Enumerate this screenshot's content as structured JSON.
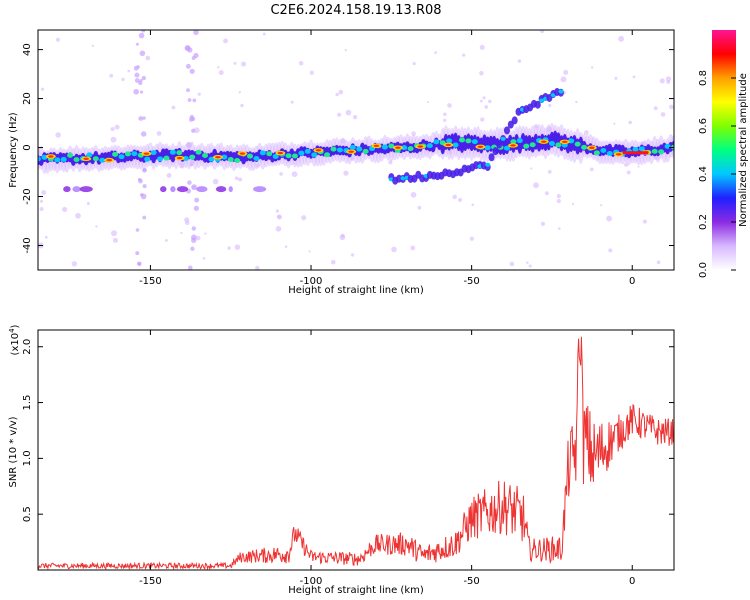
{
  "title": "C2E6.2024.158.19.13.R08",
  "chart_data": [
    {
      "type": "heatmap",
      "xlabel": "Height of straight line (km)",
      "ylabel": "Frequency (Hz)",
      "xlim": [
        -185,
        13
      ],
      "ylim": [
        -50,
        48
      ],
      "xticks": [
        -150,
        -100,
        -50,
        0
      ],
      "yticks": [
        40,
        20,
        0,
        -20,
        -40
      ],
      "colorbar": {
        "label": "Normalized spectral amplitude",
        "range": [
          0,
          1
        ],
        "ticks": [
          0.0,
          0.2,
          0.4,
          0.6,
          0.8
        ],
        "tick_labels": [
          "0.0",
          "0.2",
          "0.4",
          "0.6",
          "0.8"
        ],
        "colors": [
          "#ffffff",
          "#d8b8ff",
          "#8a2be2",
          "#2020ff",
          "#00c8ff",
          "#00ff80",
          "#80ff00",
          "#ffff00",
          "#ffa000",
          "#ff0000",
          "#ff1493"
        ]
      },
      "main_trace": [
        {
          "x": -185,
          "y": -5
        },
        {
          "x": -160,
          "y": -4
        },
        {
          "x": -140,
          "y": -3
        },
        {
          "x": -120,
          "y": -4
        },
        {
          "x": -100,
          "y": -2
        },
        {
          "x": -85,
          "y": -1
        },
        {
          "x": -70,
          "y": 0
        },
        {
          "x": -55,
          "y": 2
        },
        {
          "x": -40,
          "y": 1
        },
        {
          "x": -25,
          "y": 3
        },
        {
          "x": -10,
          "y": -1
        },
        {
          "x": 0,
          "y": -2
        },
        {
          "x": 13,
          "y": 0
        }
      ],
      "secondary_trace": [
        {
          "x": -75,
          "y": -13
        },
        {
          "x": -60,
          "y": -11
        },
        {
          "x": -45,
          "y": -7
        },
        {
          "x": -35,
          "y": 15
        },
        {
          "x": -22,
          "y": 23
        }
      ],
      "low_band": {
        "y": -17,
        "x_from": -185,
        "x_to": -100
      }
    },
    {
      "type": "line",
      "xlabel": "Height of straight line (km)",
      "ylabel": "SNR (10 * v/v)",
      "y_multiplier": "(x10",
      "y_multiplier_exp": "4",
      "xlim": [
        -185,
        13
      ],
      "ylim": [
        0,
        2.15
      ],
      "xticks": [
        -150,
        -100,
        -50,
        0
      ],
      "yticks": [
        0.5,
        1.0,
        1.5,
        2.0
      ],
      "ytick_labels": [
        "0.5",
        "1.0",
        "1.5",
        "2.0"
      ],
      "color": "#ee3333",
      "envelope": [
        {
          "x": -185,
          "base": 0.03,
          "amp": 0.05
        },
        {
          "x": -125,
          "base": 0.03,
          "amp": 0.05
        },
        {
          "x": -122,
          "base": 0.1,
          "amp": 0.1
        },
        {
          "x": -107,
          "base": 0.12,
          "amp": 0.18
        },
        {
          "x": -105,
          "base": 0.3,
          "amp": 0.2
        },
        {
          "x": -100,
          "base": 0.1,
          "amp": 0.12
        },
        {
          "x": -85,
          "base": 0.08,
          "amp": 0.12
        },
        {
          "x": -80,
          "base": 0.2,
          "amp": 0.18
        },
        {
          "x": -70,
          "base": 0.2,
          "amp": 0.22
        },
        {
          "x": -65,
          "base": 0.1,
          "amp": 0.18
        },
        {
          "x": -55,
          "base": 0.2,
          "amp": 0.25
        },
        {
          "x": -50,
          "base": 0.4,
          "amp": 0.4
        },
        {
          "x": -40,
          "base": 0.5,
          "amp": 0.5
        },
        {
          "x": -34,
          "base": 0.4,
          "amp": 0.5
        },
        {
          "x": -32,
          "base": 0.15,
          "amp": 0.2
        },
        {
          "x": -22,
          "base": 0.15,
          "amp": 0.25
        },
        {
          "x": -20,
          "base": 0.8,
          "amp": 0.55
        },
        {
          "x": -16,
          "base": 1.1,
          "amp": 0.9
        },
        {
          "x": -12,
          "base": 0.9,
          "amp": 0.7
        },
        {
          "x": -5,
          "base": 1.15,
          "amp": 0.35
        },
        {
          "x": 0,
          "base": 1.3,
          "amp": 0.3
        },
        {
          "x": 8,
          "base": 1.2,
          "amp": 0.25
        },
        {
          "x": 13,
          "base": 1.2,
          "amp": 0.25
        }
      ]
    }
  ]
}
